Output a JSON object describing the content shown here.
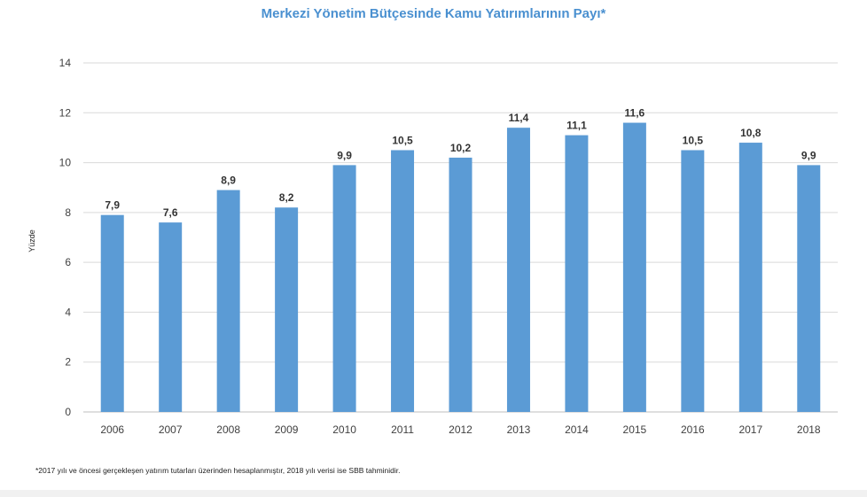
{
  "chart_data": {
    "type": "bar",
    "title": "Merkezi Yönetim Bütçesinde Kamu Yatırımlarının Payı*",
    "xlabel": "",
    "ylabel": "Yüzde",
    "categories": [
      "2006",
      "2007",
      "2008",
      "2009",
      "2010",
      "2011",
      "2012",
      "2013",
      "2014",
      "2015",
      "2016",
      "2017",
      "2018"
    ],
    "values": [
      7.9,
      7.6,
      8.9,
      8.2,
      9.9,
      10.5,
      10.2,
      11.4,
      11.1,
      11.6,
      10.5,
      10.8,
      9.9
    ],
    "data_labels": [
      "7,9",
      "7,6",
      "8,9",
      "8,2",
      "9,9",
      "10,5",
      "10,2",
      "11,4",
      "11,1",
      "11,6",
      "10,5",
      "10,8",
      "9,9"
    ],
    "yticks": [
      "0",
      "2",
      "4",
      "6",
      "8",
      "10",
      "12",
      "14"
    ],
    "ylim": [
      0,
      14
    ],
    "grid": true,
    "legend": "none",
    "bar_color": "#5b9bd5",
    "title_color": "#4a90d0"
  },
  "footnote": "*2017 yılı ve öncesi gerçekleşen yatırım tutarları üzerinden hesaplanmıştır, 2018 yılı verisi ise SBB tahminidir."
}
